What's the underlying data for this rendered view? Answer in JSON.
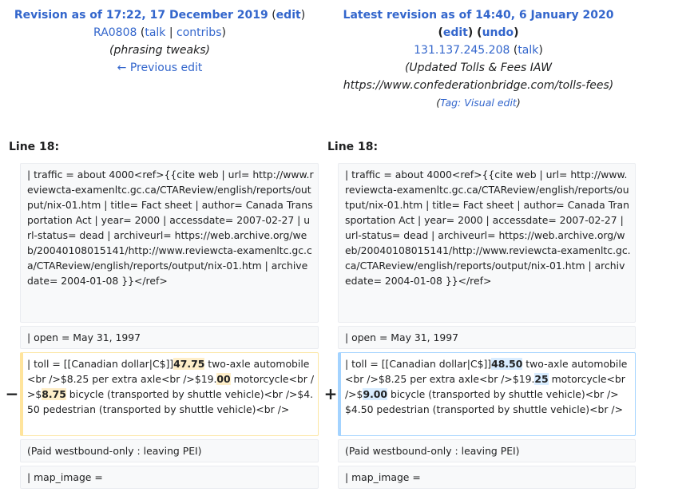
{
  "left_header": {
    "title": "Revision as of 17:22, 17 December 2019",
    "edit_label": "edit",
    "user": "RA0808",
    "talk_label": "talk",
    "contribs_label": "contribs",
    "summary": "(phrasing tweaks)",
    "prev_edit_label": "← Previous edit"
  },
  "right_header": {
    "title": "Latest revision as of 14:40, 6 January 2020",
    "edit_label": "edit",
    "undo_label": "undo",
    "user": "131.137.245.208",
    "talk_label": "talk",
    "summary_line1": "(Updated Tolls & Fees IAW",
    "summary_line2": "https://www.confederationbridge.com/tolls-fees)",
    "tag_prefix": "Tag:",
    "tag_label": "Visual edit"
  },
  "line_label_left": "Line 18:",
  "line_label_right": "Line 18:",
  "rows": {
    "traffic": "| traffic = about 4000<ref>{{cite web | url= http://www.reviewcta-examenltc.gc.ca/CTAReview/english/reports/output/nix-01.htm | title= Fact sheet | author= Canada Transportation Act | year= 2000 | accessdate= 2007-02-27 | url-status= dead | archiveurl= https://web.archive.org/web/20040108015141/http://www.reviewcta-examenltc.gc.ca/CTAReview/english/reports/output/nix-01.htm | archivedate= 2004-01-08 }}</ref>",
    "open": "| open = May 31, 1997",
    "paid": "(Paid westbound-only : leaving PEI)",
    "map_image": "| map_image ="
  },
  "toll_old": {
    "p1": "| toll = [[Canadian dollar|C$]]",
    "h1": "47.75",
    "p2": " two-axle automobile<br />$8.25 per extra axle<br />$19.",
    "h2": "00",
    "p3": " motorcycle<br />$",
    "h3": "8.75",
    "p4": " bicycle (transported by shuttle vehicle)<br />$4.50 pedestrian (transported by shuttle vehicle)<br />"
  },
  "toll_new": {
    "p1": "| toll = [[Canadian dollar|C$]]",
    "h1": "48.50",
    "p2": " two-axle automobile<br />$8.25 per extra axle<br />$19.",
    "h2": "25",
    "p3": " motorcycle<br />$",
    "h3": "9.00",
    "p4": " bicycle (transported by shuttle vehicle)<br />$4.50 pedestrian (transported by shuttle vehicle)<br />"
  },
  "markers": {
    "minus": "−",
    "plus": "+"
  }
}
